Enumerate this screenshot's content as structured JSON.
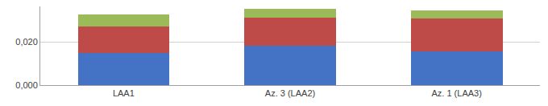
{
  "chart_data": {
    "type": "bar",
    "stacked": true,
    "categories": [
      "LAA1",
      "Az. 3 (LAA2)",
      "Az. 1 (LAA3)"
    ],
    "series": [
      {
        "color": "#4472C4",
        "values": [
          0.0148,
          0.0182,
          0.0158
        ]
      },
      {
        "color": "#BE4B48",
        "values": [
          0.0125,
          0.013,
          0.015
        ]
      },
      {
        "color": "#9BBB59",
        "values": [
          0.0055,
          0.0042,
          0.004
        ]
      }
    ],
    "ylim": [
      0,
      0.0365
    ],
    "yticks": [
      {
        "value": 0,
        "label": "0,000"
      },
      {
        "value": 0.02,
        "label": "0,020"
      }
    ],
    "grid": true
  }
}
